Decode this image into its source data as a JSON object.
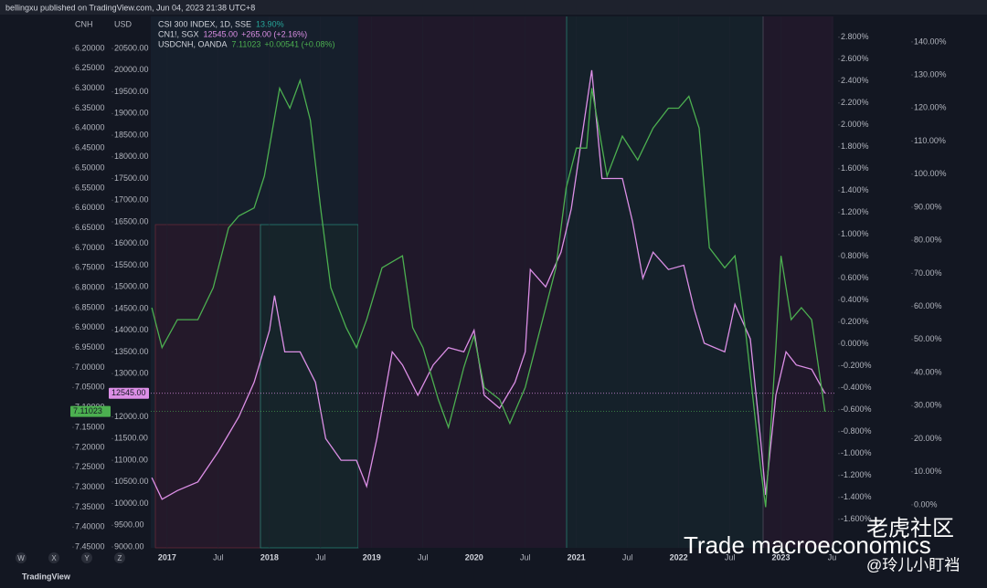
{
  "header": "bellingxu published on TradingView.com, Jun 04, 2023 21:38 UTC+8",
  "footer": "TradingView",
  "toolbar": [
    "W",
    "X",
    "Y",
    "Z"
  ],
  "watermark": {
    "title": "Trade macroeconomics",
    "site": "老虎社区",
    "handle": "@玲儿小盯裆"
  },
  "chart_data": {
    "type": "line",
    "axis_titles": {
      "cnh": "CNH",
      "usd": "USD"
    },
    "legend": [
      {
        "name": "CSI 300 INDEX, 1D, SSE",
        "last": "13.90%"
      },
      {
        "name": "CN1!, SGX",
        "last": "12545.00",
        "change": "+265.00 (+2.16%)"
      },
      {
        "name": "USDCNH, OANDA",
        "last": "7.11023",
        "change": "+0.00541 (+0.08%)"
      }
    ],
    "xlim": [
      2016.84,
      2023.54
    ],
    "xticks": [
      {
        "value": 2017,
        "label": "2017"
      },
      {
        "value": 2017.5,
        "label": "Jul"
      },
      {
        "value": 2018,
        "label": "2018"
      },
      {
        "value": 2018.5,
        "label": "Jul"
      },
      {
        "value": 2019,
        "label": "2019"
      },
      {
        "value": 2019.5,
        "label": "Jul"
      },
      {
        "value": 2020,
        "label": "2020"
      },
      {
        "value": 2020.5,
        "label": "Jul"
      },
      {
        "value": 2021,
        "label": "2021"
      },
      {
        "value": 2021.5,
        "label": "Jul"
      },
      {
        "value": 2022,
        "label": "2022"
      },
      {
        "value": 2022.5,
        "label": "Jul"
      },
      {
        "value": 2023,
        "label": "2023"
      },
      {
        "value": 2023.5,
        "label": "Ju"
      }
    ],
    "ylim": [
      8980,
      21240
    ],
    "yticks": [
      {
        "value": 9000,
        "label": "9000.00"
      },
      {
        "value": 9500,
        "label": "9500.00"
      },
      {
        "value": 10000,
        "label": "10000.00"
      },
      {
        "value": 10500,
        "label": "10500.00"
      },
      {
        "value": 11000,
        "label": "11000.00"
      },
      {
        "value": 11500,
        "label": "11500.00"
      },
      {
        "value": 12000,
        "label": "12000.00"
      },
      {
        "value": 12500,
        "label": "12500.00"
      },
      {
        "value": 13000,
        "label": "13000.00"
      },
      {
        "value": 13500,
        "label": "13500.00"
      },
      {
        "value": 14000,
        "label": "14000.00"
      },
      {
        "value": 14500,
        "label": "14500.00"
      },
      {
        "value": 15000,
        "label": "15000.00"
      },
      {
        "value": 15500,
        "label": "15500.00"
      },
      {
        "value": 16000,
        "label": "16000.00"
      },
      {
        "value": 16500,
        "label": "16500.00"
      },
      {
        "value": 17000,
        "label": "17000.00"
      },
      {
        "value": 17500,
        "label": "17500.00"
      },
      {
        "value": 18000,
        "label": "18000.00"
      },
      {
        "value": 18500,
        "label": "18500.00"
      },
      {
        "value": 19000,
        "label": "19000.00"
      },
      {
        "value": 19500,
        "label": "19500.00"
      },
      {
        "value": 20000,
        "label": "20000.00"
      },
      {
        "value": 20500,
        "label": "20500.00"
      }
    ],
    "cnhlim": [
      7.452,
      6.12
    ],
    "cnhticks": [
      {
        "value": 6.2,
        "label": "6.20000"
      },
      {
        "value": 6.25,
        "label": "6.25000"
      },
      {
        "value": 6.3,
        "label": "6.30000"
      },
      {
        "value": 6.35,
        "label": "6.35000"
      },
      {
        "value": 6.4,
        "label": "6.40000"
      },
      {
        "value": 6.45,
        "label": "6.45000"
      },
      {
        "value": 6.5,
        "label": "6.50000"
      },
      {
        "value": 6.55,
        "label": "6.55000"
      },
      {
        "value": 6.6,
        "label": "6.60000"
      },
      {
        "value": 6.65,
        "label": "6.65000"
      },
      {
        "value": 6.7,
        "label": "6.70000"
      },
      {
        "value": 6.75,
        "label": "6.75000"
      },
      {
        "value": 6.8,
        "label": "6.80000"
      },
      {
        "value": 6.85,
        "label": "6.85000"
      },
      {
        "value": 6.9,
        "label": "6.90000"
      },
      {
        "value": 6.95,
        "label": "6.95000"
      },
      {
        "value": 7.0,
        "label": "7.00000"
      },
      {
        "value": 7.05,
        "label": "7.05000"
      },
      {
        "value": 7.1,
        "label": "7.10000"
      },
      {
        "value": 7.15,
        "label": "7.15000"
      },
      {
        "value": 7.2,
        "label": "7.20000"
      },
      {
        "value": 7.25,
        "label": "7.25000"
      },
      {
        "value": 7.3,
        "label": "7.30000"
      },
      {
        "value": 7.35,
        "label": "7.35000"
      },
      {
        "value": 7.4,
        "label": "7.40000"
      },
      {
        "value": 7.45,
        "label": "7.45000"
      }
    ],
    "y2lim": [
      -1.86,
      2.99
    ],
    "y2ticks": [
      {
        "value": -1.6,
        "label": "-1.600%"
      },
      {
        "value": -1.4,
        "label": "-1.400%"
      },
      {
        "value": -1.2,
        "label": "-1.200%"
      },
      {
        "value": -1.0,
        "label": "-1.000%"
      },
      {
        "value": -0.8,
        "label": "-0.800%"
      },
      {
        "value": -0.6,
        "label": "-0.600%"
      },
      {
        "value": -0.4,
        "label": "-0.400%"
      },
      {
        "value": -0.2,
        "label": "-0.200%"
      },
      {
        "value": 0,
        "label": "0.000%"
      },
      {
        "value": 0.2,
        "label": "0.200%"
      },
      {
        "value": 0.4,
        "label": "0.400%"
      },
      {
        "value": 0.6,
        "label": "0.600%"
      },
      {
        "value": 0.8,
        "label": "0.800%"
      },
      {
        "value": 1.0,
        "label": "1.000%"
      },
      {
        "value": 1.2,
        "label": "1.200%"
      },
      {
        "value": 1.4,
        "label": "1.400%"
      },
      {
        "value": 1.6,
        "label": "1.600%"
      },
      {
        "value": 1.8,
        "label": "1.800%"
      },
      {
        "value": 2.0,
        "label": "2.000%"
      },
      {
        "value": 2.2,
        "label": "2.200%"
      },
      {
        "value": 2.4,
        "label": "2.400%"
      },
      {
        "value": 2.6,
        "label": "2.600%"
      },
      {
        "value": 2.8,
        "label": "2.800%"
      }
    ],
    "y3lim": [
      -13,
      147.7
    ],
    "y3ticks": [
      {
        "value": 0,
        "label": "0.00%"
      },
      {
        "value": 10,
        "label": "10.00%"
      },
      {
        "value": 20,
        "label": "20.00%"
      },
      {
        "value": 30,
        "label": "30.00%"
      },
      {
        "value": 40,
        "label": "40.00%"
      },
      {
        "value": 50,
        "label": "50.00%"
      },
      {
        "value": 60,
        "label": "60.00%"
      },
      {
        "value": 70,
        "label": "70.00%"
      },
      {
        "value": 80,
        "label": "80.00%"
      },
      {
        "value": 90,
        "label": "90.00%"
      },
      {
        "value": 100,
        "label": "100.00%"
      },
      {
        "value": 110,
        "label": "110.00%"
      },
      {
        "value": 120,
        "label": "120.00%"
      },
      {
        "value": 130,
        "label": "130.00%"
      },
      {
        "value": 140,
        "label": "140.00%"
      }
    ],
    "series": [
      {
        "name": "CN1!, SGX",
        "color": "#dc8fe6",
        "axis": "y",
        "x": [
          2016.85,
          2016.95,
          2017.1,
          2017.3,
          2017.5,
          2017.7,
          2017.85,
          2018.0,
          2018.05,
          2018.15,
          2018.3,
          2018.45,
          2018.55,
          2018.7,
          2018.85,
          2018.95,
          2019.05,
          2019.2,
          2019.3,
          2019.45,
          2019.6,
          2019.75,
          2019.9,
          2020.0,
          2020.1,
          2020.25,
          2020.4,
          2020.5,
          2020.55,
          2020.7,
          2020.85,
          2020.95,
          2021.1,
          2021.15,
          2021.25,
          2021.45,
          2021.55,
          2021.65,
          2021.75,
          2021.9,
          2022.05,
          2022.15,
          2022.25,
          2022.45,
          2022.55,
          2022.7,
          2022.8,
          2022.85,
          2022.95,
          2023.05,
          2023.15,
          2023.3,
          2023.43
        ],
        "values": [
          10600,
          10100,
          10300,
          10500,
          11200,
          12000,
          12800,
          14000,
          14800,
          13500,
          13500,
          12800,
          11500,
          11000,
          11000,
          10400,
          11500,
          13500,
          13200,
          12500,
          13200,
          13600,
          13500,
          14000,
          12500,
          12200,
          12800,
          13500,
          15400,
          15000,
          15800,
          16800,
          19200,
          20000,
          17500,
          17500,
          16500,
          15200,
          15800,
          15400,
          15500,
          14500,
          13700,
          13500,
          14600,
          13800,
          11500,
          10200,
          12500,
          13500,
          13200,
          13100,
          12545
        ]
      },
      {
        "name": "USDCNH, OANDA",
        "color": "#4caf50",
        "axis": "cnh",
        "x": [
          2016.85,
          2016.95,
          2017.1,
          2017.3,
          2017.45,
          2017.6,
          2017.7,
          2017.85,
          2017.95,
          2018.1,
          2018.2,
          2018.3,
          2018.4,
          2018.5,
          2018.6,
          2018.75,
          2018.85,
          2018.95,
          2019.1,
          2019.3,
          2019.4,
          2019.5,
          2019.65,
          2019.75,
          2019.9,
          2020.0,
          2020.1,
          2020.25,
          2020.35,
          2020.5,
          2020.65,
          2020.8,
          2020.9,
          2021.0,
          2021.1,
          2021.15,
          2021.3,
          2021.45,
          2021.6,
          2021.75,
          2021.9,
          2022.0,
          2022.1,
          2022.2,
          2022.3,
          2022.45,
          2022.55,
          2022.65,
          2022.8,
          2022.85,
          2022.95,
          2023.0,
          2023.1,
          2023.2,
          2023.3,
          2023.43
        ],
        "values": [
          6.85,
          6.95,
          6.88,
          6.88,
          6.8,
          6.65,
          6.62,
          6.6,
          6.52,
          6.3,
          6.35,
          6.28,
          6.38,
          6.6,
          6.8,
          6.9,
          6.95,
          6.88,
          6.75,
          6.72,
          6.9,
          6.95,
          7.08,
          7.15,
          7.0,
          6.92,
          7.05,
          7.08,
          7.14,
          7.05,
          6.9,
          6.75,
          6.55,
          6.45,
          6.45,
          6.3,
          6.52,
          6.42,
          6.48,
          6.4,
          6.35,
          6.35,
          6.32,
          6.4,
          6.7,
          6.75,
          6.72,
          6.9,
          7.25,
          7.35,
          6.95,
          6.72,
          6.88,
          6.85,
          6.88,
          7.11023
        ]
      }
    ]
  }
}
